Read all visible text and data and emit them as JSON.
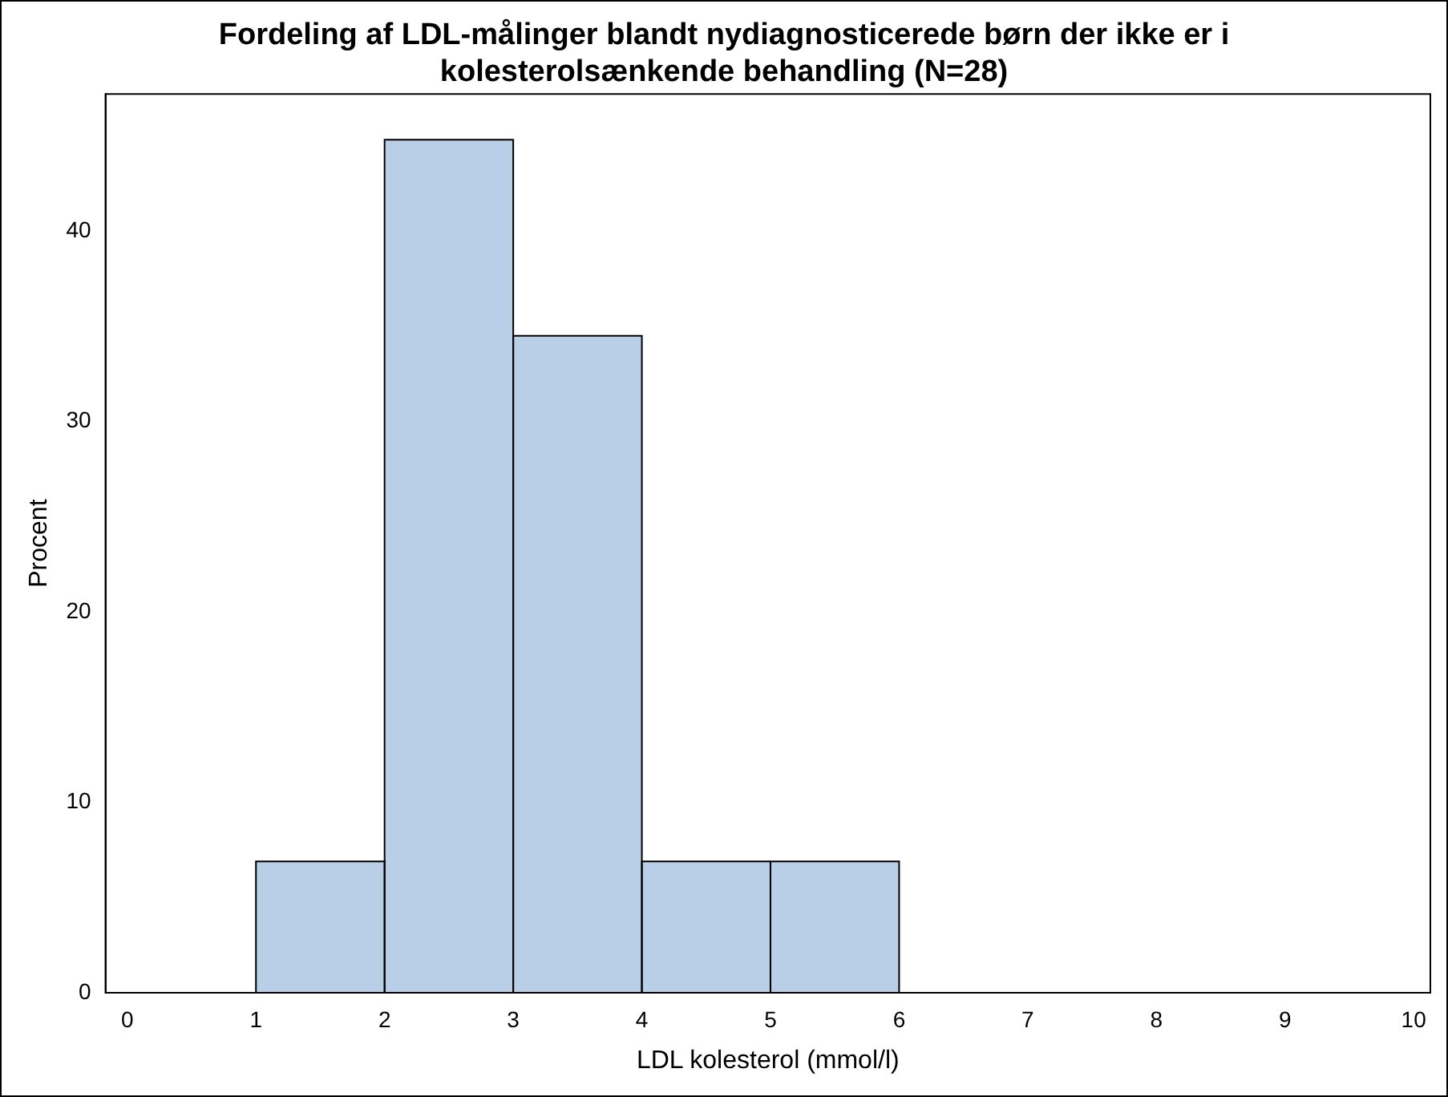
{
  "chart_data": {
    "type": "histogram",
    "title": "Fordeling af LDL-målinger blandt nydiagnosticerede børn der ikke er i kolesterolsænkende behandling (N=28)",
    "xlabel": "LDL kolesterol (mmol/l)",
    "ylabel": "Procent",
    "bins": [
      0,
      1,
      2,
      3,
      4,
      5,
      6
    ],
    "values": [
      0,
      6.9,
      44.8,
      34.5,
      6.9,
      6.9
    ],
    "color": "#b9cfe8",
    "xlim": [
      -0.17,
      10.13
    ],
    "xticks": [
      0,
      1,
      2,
      3,
      4,
      5,
      6,
      7,
      8,
      9,
      10
    ],
    "ylim": [
      0,
      47.2
    ],
    "yticks": [
      0,
      10,
      20,
      30,
      40
    ],
    "grid": false,
    "legend": false
  }
}
